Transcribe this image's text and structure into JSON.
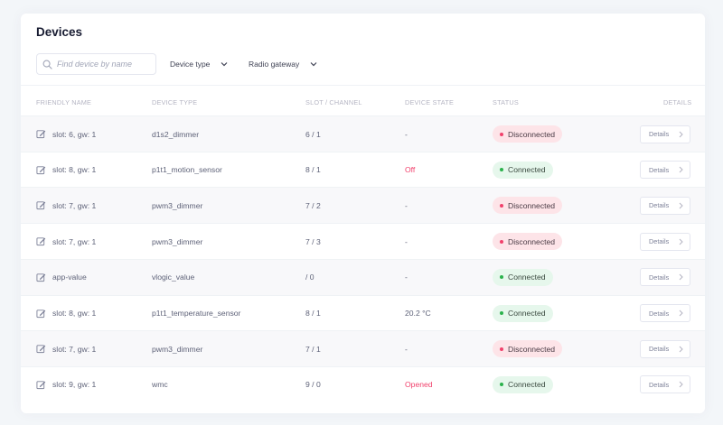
{
  "page": {
    "title": "Devices"
  },
  "filters": {
    "search_placeholder": "Find device by name",
    "device_type_label": "Device type",
    "radio_gateway_label": "Radio gateway"
  },
  "table": {
    "headers": {
      "friendly_name": "FRIENDLY NAME",
      "device_type": "DEVICE TYPE",
      "slot_channel": "SLOT / CHANNEL",
      "device_state": "DEVICE STATE",
      "status": "STATUS",
      "details": "DETAILS"
    },
    "rows": [
      {
        "name": "slot: 6, gw: 1",
        "type": "d1s2_dimmer",
        "slot": "6 / 1",
        "state": "-",
        "status": "Disconnected",
        "details": "Details"
      },
      {
        "name": "slot: 8, gw: 1",
        "type": "p1t1_motion_sensor",
        "slot": "8 / 1",
        "state": "Off",
        "status": "Connected",
        "details": "Details"
      },
      {
        "name": "slot: 7, gw: 1",
        "type": "pwm3_dimmer",
        "slot": "7 / 2",
        "state": "-",
        "status": "Disconnected",
        "details": "Details"
      },
      {
        "name": "slot: 7, gw: 1",
        "type": "pwm3_dimmer",
        "slot": "7 / 3",
        "state": "-",
        "status": "Disconnected",
        "details": "Details"
      },
      {
        "name": "app-value",
        "type": "vlogic_value",
        "slot": "/ 0",
        "state": "-",
        "status": "Connected",
        "details": "Details"
      },
      {
        "name": "slot: 8, gw: 1",
        "type": "p1t1_temperature_sensor",
        "slot": "8 / 1",
        "state": "20.2 °C",
        "status": "Connected",
        "details": "Details"
      },
      {
        "name": "slot: 7, gw: 1",
        "type": "pwm3_dimmer",
        "slot": "7 / 1",
        "state": "-",
        "status": "Disconnected",
        "details": "Details"
      },
      {
        "name": "slot: 9, gw: 1",
        "type": "wmc",
        "slot": "9 / 0",
        "state": "Opened",
        "status": "Connected",
        "details": "Details"
      }
    ]
  },
  "colors": {
    "connected": "#2bb24c",
    "disconnected": "#f1416c",
    "state_alert": "#f1416c"
  },
  "icons": {
    "search": "search-icon",
    "edit": "edit-icon",
    "chevron_down": "chevron-down-icon",
    "chevron_right": "chevron-right-icon",
    "status_dot": "status-dot-icon"
  }
}
